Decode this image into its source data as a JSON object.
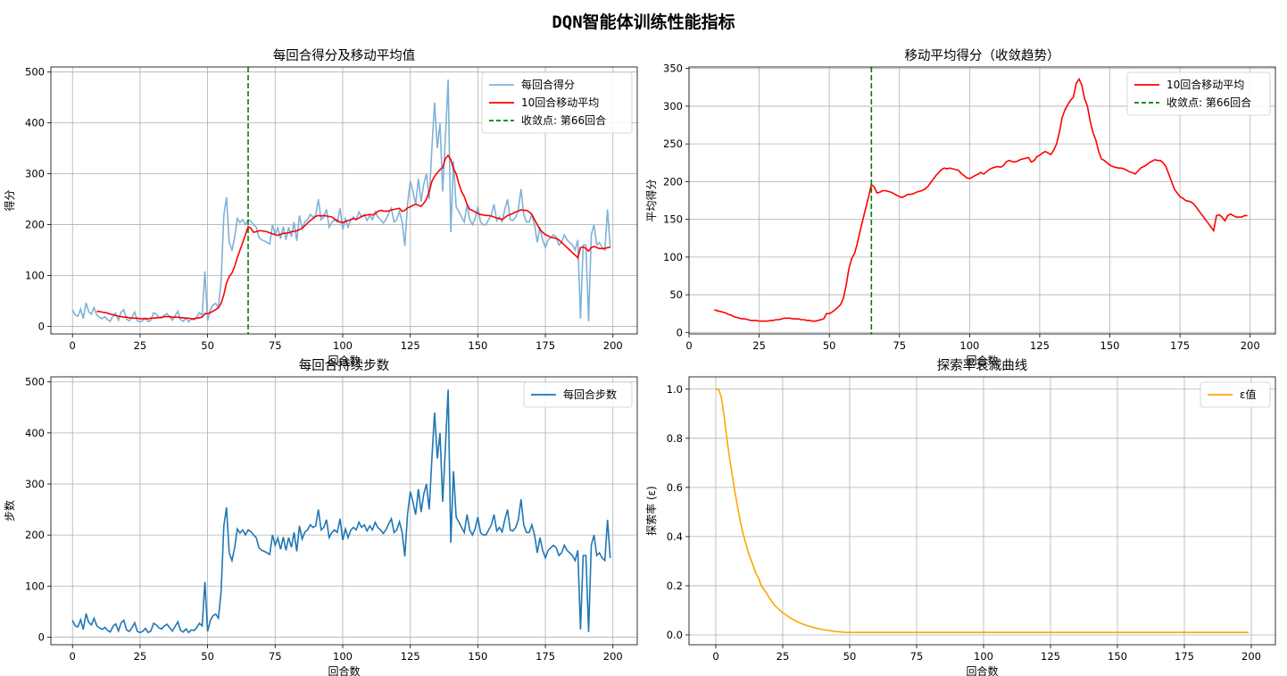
{
  "figure": {
    "suptitle": "DQN智能体训练性能指标"
  },
  "colors": {
    "raw": "#7fb2d8",
    "ma": "#ff0000",
    "conv": "#008000",
    "steps": "#1f77b4",
    "eps": "#ffa500",
    "grid": "#b0b0b0"
  },
  "chart_data": [
    {
      "id": "scores",
      "type": "line",
      "title": "每回合得分及移动平均值",
      "xlabel": "回合数",
      "ylabel": "得分",
      "xlim": [
        -8,
        209
      ],
      "ylim": [
        -15,
        510
      ],
      "xticks": [
        0,
        25,
        50,
        75,
        100,
        125,
        150,
        175,
        200
      ],
      "yticks": [
        0,
        100,
        200,
        300,
        400,
        500
      ],
      "grid": true,
      "legend_position": "top-right",
      "series": [
        {
          "name": "每回合得分",
          "ref": "raw_scores",
          "style": "raw"
        },
        {
          "name": "10回合移动平均",
          "ref": "moving_avg",
          "style": "ma"
        },
        {
          "name": "收敛点: 第66回合",
          "vline_x": 65,
          "style": "conv"
        }
      ]
    },
    {
      "id": "moving",
      "type": "line",
      "title": "移动平均得分（收敛趋势）",
      "xlabel": "回合数",
      "ylabel": "平均得分",
      "xlim": [
        0,
        209
      ],
      "ylim": [
        -2,
        352
      ],
      "xticks": [
        0,
        25,
        50,
        75,
        100,
        125,
        150,
        175,
        200
      ],
      "yticks": [
        0,
        50,
        100,
        150,
        200,
        250,
        300,
        350
      ],
      "grid": true,
      "legend_position": "top-right",
      "series": [
        {
          "name": "10回合移动平均",
          "ref": "moving_avg",
          "style": "ma"
        },
        {
          "name": "收敛点: 第66回合",
          "vline_x": 65,
          "style": "conv"
        }
      ]
    },
    {
      "id": "steps",
      "type": "line",
      "title": "每回合持续步数",
      "xlabel": "回合数",
      "ylabel": "步数",
      "xlim": [
        -8,
        209
      ],
      "ylim": [
        -15,
        510
      ],
      "xticks": [
        0,
        25,
        50,
        75,
        100,
        125,
        150,
        175,
        200
      ],
      "yticks": [
        0,
        100,
        200,
        300,
        400,
        500
      ],
      "grid": true,
      "legend_position": "top-right",
      "series": [
        {
          "name": "每回合步数",
          "ref": "raw_scores",
          "style": "steps"
        }
      ]
    },
    {
      "id": "epsilon",
      "type": "line",
      "title": "探索率衰减曲线",
      "xlabel": "回合数",
      "ylabel": "探索率 (ε)",
      "xlim": [
        -10,
        209
      ],
      "ylim": [
        -0.04,
        1.05
      ],
      "xticks": [
        0,
        25,
        50,
        75,
        100,
        125,
        150,
        175,
        200
      ],
      "yticks": [
        0.0,
        0.2,
        0.4,
        0.6,
        0.8,
        1.0
      ],
      "grid": true,
      "legend_position": "top-right",
      "series": [
        {
          "name": "ε值",
          "ref": "epsilon",
          "style": "eps"
        }
      ]
    }
  ],
  "raw_scores": [
    33,
    22,
    20,
    34,
    15,
    46,
    29,
    24,
    37,
    22,
    18,
    15,
    19,
    13,
    10,
    21,
    26,
    12,
    28,
    33,
    14,
    11,
    18,
    28,
    11,
    9,
    11,
    17,
    9,
    12,
    27,
    24,
    18,
    16,
    22,
    25,
    18,
    12,
    21,
    30,
    13,
    10,
    16,
    9,
    14,
    13,
    19,
    27,
    22,
    108,
    11,
    32,
    42,
    45,
    37,
    88,
    218,
    254,
    165,
    150,
    175,
    212,
    204,
    210,
    200,
    210,
    207,
    200,
    195,
    175,
    170,
    168,
    165,
    162,
    200,
    180,
    194,
    172,
    196,
    170,
    195,
    176,
    205,
    168,
    218,
    192,
    206,
    210,
    220,
    215,
    218,
    250,
    210,
    215,
    230,
    195,
    205,
    210,
    205,
    232,
    190,
    212,
    195,
    210,
    215,
    210,
    225,
    215,
    220,
    208,
    218,
    210,
    225,
    215,
    210,
    203,
    210,
    222,
    232,
    205,
    210,
    226,
    205,
    158,
    240,
    285,
    265,
    240,
    290,
    245,
    280,
    300,
    250,
    350,
    440,
    350,
    400,
    265,
    370,
    485,
    185,
    325,
    235,
    225,
    215,
    205,
    240,
    210,
    200,
    212,
    235,
    205,
    200,
    200,
    210,
    220,
    240,
    208,
    215,
    206,
    230,
    250,
    210,
    208,
    215,
    230,
    270,
    220,
    205,
    205,
    220,
    200,
    165,
    195,
    170,
    155,
    170,
    175,
    180,
    175,
    160,
    165,
    180,
    170,
    165,
    160,
    150,
    170,
    15,
    160,
    160,
    10,
    180,
    200,
    160,
    165,
    155,
    150,
    230,
    155
  ],
  "moving_avg": [
    null,
    null,
    null,
    null,
    null,
    null,
    null,
    null,
    null,
    30,
    29,
    28,
    27,
    26,
    24,
    23,
    21,
    20,
    19,
    18,
    18,
    17,
    16,
    16,
    16,
    15,
    15,
    15,
    15,
    16,
    16,
    17,
    17,
    18,
    19,
    19,
    19,
    18,
    18,
    18,
    17,
    17,
    16,
    16,
    15,
    15,
    16,
    17,
    18,
    25,
    25,
    27,
    30,
    33,
    37,
    45,
    62,
    85,
    98,
    105,
    118,
    135,
    150,
    165,
    180,
    196,
    193,
    185,
    186,
    188,
    188,
    187,
    186,
    184,
    182,
    180,
    179,
    181,
    183,
    183,
    184,
    186,
    187,
    188,
    190,
    193,
    198,
    203,
    208,
    212,
    216,
    218,
    217,
    218,
    217,
    216,
    215,
    211,
    208,
    205,
    204,
    206,
    208,
    210,
    212,
    210,
    213,
    216,
    218,
    219,
    220,
    219,
    221,
    226,
    228,
    227,
    226,
    227,
    229,
    230,
    231,
    232,
    226,
    228,
    233,
    235,
    238,
    240,
    238,
    236,
    242,
    250,
    265,
    285,
    295,
    302,
    308,
    312,
    330,
    336,
    328,
    310,
    300,
    280,
    265,
    255,
    240,
    230,
    228,
    225,
    222,
    220,
    219,
    218,
    218,
    217,
    215,
    213,
    212,
    210,
    214,
    218,
    220,
    222,
    225,
    227,
    229,
    228,
    228,
    225,
    220,
    210,
    200,
    190,
    185,
    180,
    178,
    175,
    174,
    173,
    170,
    165,
    160,
    155,
    150,
    145,
    140,
    135,
    155,
    156,
    153,
    148,
    155,
    157,
    155,
    153,
    153,
    153,
    155,
    155
  ],
  "epsilon": [
    1.0,
    1.0,
    0.97,
    0.9,
    0.81,
    0.73,
    0.66,
    0.59,
    0.53,
    0.47,
    0.42,
    0.38,
    0.34,
    0.31,
    0.28,
    0.25,
    0.23,
    0.2,
    0.185,
    0.17,
    0.15,
    0.135,
    0.12,
    0.11,
    0.1,
    0.09,
    0.083,
    0.075,
    0.068,
    0.062,
    0.056,
    0.051,
    0.046,
    0.042,
    0.038,
    0.035,
    0.032,
    0.029,
    0.026,
    0.024,
    0.022,
    0.02,
    0.018,
    0.017,
    0.015,
    0.014,
    0.013,
    0.012,
    0.011,
    0.01,
    0.01
  ]
}
